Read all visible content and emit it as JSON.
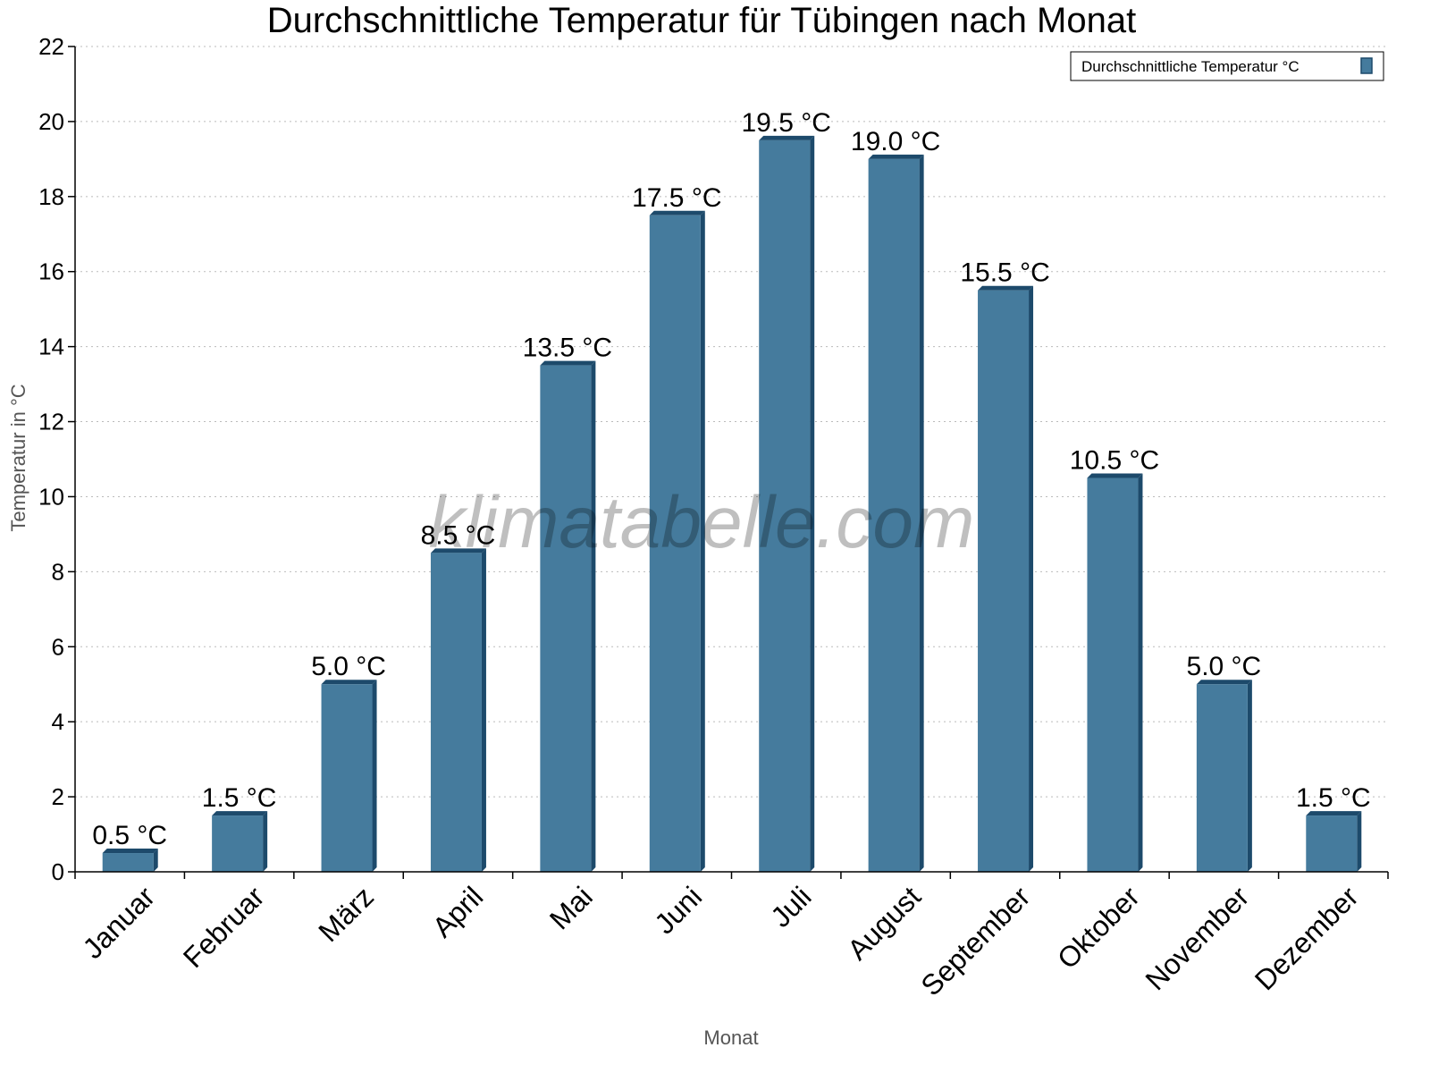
{
  "chart_data": {
    "type": "bar",
    "title": "Durchschnittliche Temperatur für Tübingen nach Monat",
    "xlabel": "Monat",
    "ylabel": "Temperatur in °C",
    "ylim": [
      0,
      22
    ],
    "yticks": [
      0,
      2,
      4,
      6,
      8,
      10,
      12,
      14,
      16,
      18,
      20,
      22
    ],
    "grid": true,
    "legend_position": "top-right",
    "categories": [
      "Januar",
      "Februar",
      "März",
      "April",
      "Mai",
      "Juni",
      "Juli",
      "August",
      "September",
      "Oktober",
      "November",
      "Dezember"
    ],
    "series": [
      {
        "name": "Durchschnittliche Temperatur °C",
        "values": [
          0.5,
          1.5,
          5.0,
          8.5,
          13.5,
          17.5,
          19.5,
          19.0,
          15.5,
          10.5,
          5.0,
          1.5
        ],
        "data_labels": [
          "0.5 °C",
          "1.5 °C",
          "5.0 °C",
          "8.5 °C",
          "13.5 °C",
          "17.5 °C",
          "19.5 °C",
          "19.0 °C",
          "15.5 °C",
          "10.5 °C",
          "5.0 °C",
          "1.5 °C"
        ],
        "color": "#457b9d",
        "edge_color": "#1d4a6b"
      }
    ],
    "watermark": "klimatabelle.com"
  }
}
